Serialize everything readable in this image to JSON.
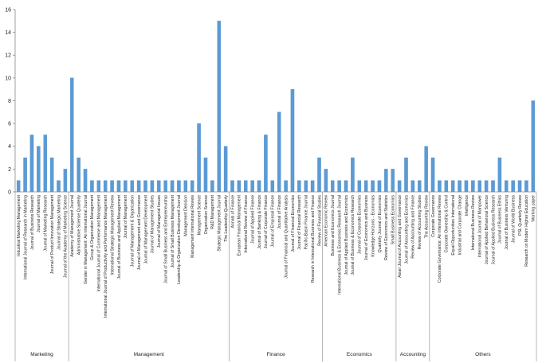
{
  "colors": {
    "bar": "#5b9bd5",
    "bar_edge": "#4a8ac4",
    "axis": "#888888"
  },
  "chart_data": {
    "type": "bar",
    "title": "",
    "xlabel": "",
    "ylabel": "",
    "ylim": [
      0,
      16
    ],
    "y_ticks": [
      "0",
      "2",
      "4",
      "6",
      "8",
      "10",
      "12",
      "14",
      "16"
    ],
    "grid": false,
    "legend": "none",
    "categories": [
      "Industrial Marketing Management",
      "International Journal of Research in Marketing",
      "Journal of Business Research",
      "Journal of Marketing",
      "Journal of Marketing Research",
      "Journal of Product Innovation Management",
      "Journal of Strategic Marketing",
      "Journal of the Academy of Marketing Science",
      "Academy of Management Journal",
      "Administrative Science Quarterly",
      "Gender in Management: An International Journal",
      "Group & Organization Management",
      "International Journal of Commerce and Management",
      "International Journal of Productivity and Performance Management",
      "International Strategic Management Review",
      "Journal of Business and Applied Management",
      "Journal of Management",
      "Journal of Management & Organization",
      "Journal of Management and Governance",
      "Journal of Management Development",
      "Journal of Management Studies",
      "Journal of Managerial Issues",
      "Journal of Small Business and Entrepreneurship",
      "Journal of Small Business Management",
      "Leadership & Organization Development Journal",
      "Management Decision",
      "Management International Review",
      "Management Science",
      "Organization Science",
      "R&D Management",
      "Strategic Management Journal",
      "The Leadership Quarterly",
      "Annals of Finance",
      "European Financial Management",
      "International Review of Finance",
      "Journal of Applied Finance",
      "Journal of Banking & Finance",
      "Journal of Corporate Finance",
      "Journal of Empirical Finance",
      "Journal of Finance",
      "Journal of Financial and Quantitative Analysis",
      "Journal of Financial Economics",
      "Journal of Financial Research",
      "Pacific-Basin Finance Journal",
      "Research in International Business and Finance",
      "Review of Financial Studies",
      "American Economic Review",
      "Business and Economics Journal",
      "International Business & Economics Research Journal",
      "Journal of Applied Business and Economics",
      "Journal of Business & Economics Research",
      "Journal of Corporate Economics",
      "Journal of Economics and Business",
      "Knowledge Horizons - Economics",
      "Quarterly Journal of Economics",
      "Review of Economics and Statistics",
      "Small Business Economics",
      "Asian Journal of Accounting and Governance",
      "Journal of Accounting and Economics",
      "Review of Accounting and Finance",
      "Review of Accounting Studies",
      "The Accounting Review",
      "Corporate Governance",
      "Corporate Governance: An International Review",
      "Corporate Ownership & Control",
      "Equal Opportunities International",
      "Industrial and Corporate Change",
      "Intelligence",
      "International Business Review",
      "International Journal of Manpower",
      "Journal of Applied Behavioral Science",
      "Journal of Applied Business Research",
      "Journal of Business Ethics",
      "Journal of Business Venturing",
      "Journal of World Business",
      "PSL Quarterly Review",
      "Research on Modern Higher Education",
      "Working paper"
    ],
    "values": [
      1,
      3,
      5,
      4,
      5,
      3,
      1,
      2,
      10,
      3,
      2,
      1,
      1,
      1,
      1,
      1,
      1,
      1,
      1,
      1,
      1,
      1,
      1,
      1,
      1,
      1,
      1,
      6,
      3,
      1,
      15,
      4,
      1,
      1,
      1,
      1,
      1,
      5,
      1,
      7,
      1,
      9,
      1,
      1,
      1,
      3,
      2,
      1,
      1,
      1,
      3,
      1,
      1,
      1,
      1,
      2,
      2,
      1,
      3,
      1,
      1,
      4,
      3,
      1,
      1,
      1,
      1,
      1,
      1,
      1,
      1,
      1,
      3,
      1,
      1,
      1,
      1,
      8
    ],
    "groups": [
      {
        "name": "Marketing",
        "start": 0,
        "end": 7
      },
      {
        "name": "Management",
        "start": 8,
        "end": 31
      },
      {
        "name": "Finance",
        "start": 32,
        "end": 45
      },
      {
        "name": "Economics",
        "start": 46,
        "end": 56
      },
      {
        "name": "Accounting",
        "start": 57,
        "end": 61
      },
      {
        "name": "Others",
        "start": 62,
        "end": 77
      }
    ]
  }
}
